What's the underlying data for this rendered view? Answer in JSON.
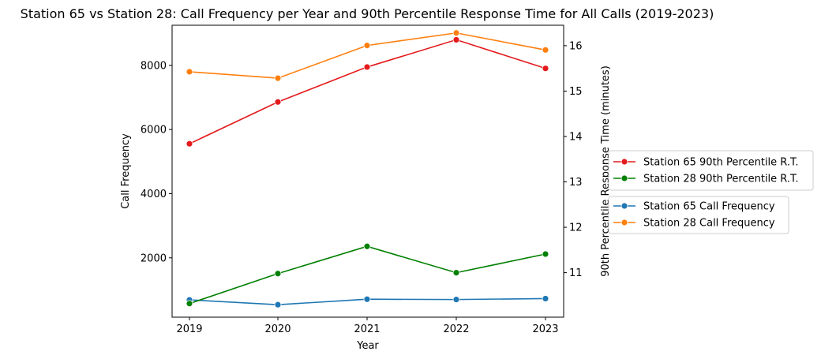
{
  "chart_data": {
    "type": "line",
    "title": "Station 65 vs Station 28: Call Frequency per Year and 90th Percentile Response Time for All Calls (2019-2023)",
    "xlabel": "Year",
    "ylabel_left": "Call Frequency",
    "ylabel_right": "90th Percentile Response Time (minutes)",
    "x": [
      "2019",
      "2020",
      "2021",
      "2022",
      "2023"
    ],
    "left_axis": {
      "ylim": [
        150,
        9250
      ],
      "ticks": [
        2000,
        4000,
        6000,
        8000
      ]
    },
    "right_axis": {
      "ylim": [
        10.02,
        16.45
      ],
      "ticks": [
        11,
        12,
        13,
        14,
        15,
        16
      ]
    },
    "series_left": [
      {
        "name": "Station 65 Call Frequency",
        "color": "#1f77b4",
        "values": [
          690,
          540,
          710,
          700,
          730
        ]
      },
      {
        "name": "Station 28 Call Frequency",
        "color": "#ff7f0e",
        "values": [
          7800,
          7600,
          8620,
          9010,
          8480
        ]
      }
    ],
    "series_right": [
      {
        "name": "Station 65 90th Percentile R.T.",
        "color": "#e41a1c",
        "values": [
          13.84,
          14.76,
          15.53,
          16.13,
          15.5
        ]
      },
      {
        "name": "Station 28 90th Percentile R.T.",
        "color": "#008000",
        "values": [
          10.32,
          10.98,
          11.58,
          11.0,
          11.41
        ]
      }
    ],
    "legend_placement": "right-outside",
    "grid": false
  }
}
